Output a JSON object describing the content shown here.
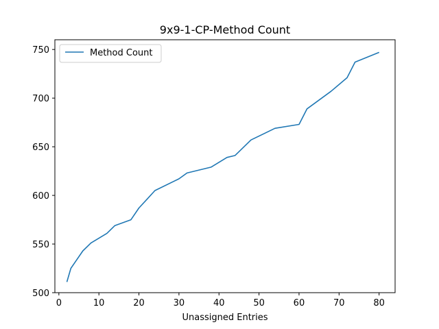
{
  "chart_data": {
    "type": "line",
    "title": "9x9-1-CP-Method Count",
    "xlabel": "Unassigned Entries",
    "ylabel": "",
    "xlim": [
      -1,
      84
    ],
    "ylim": [
      500,
      760
    ],
    "xticks": [
      0,
      10,
      20,
      30,
      40,
      50,
      60,
      70,
      80
    ],
    "yticks": [
      500,
      550,
      600,
      650,
      700,
      750
    ],
    "grid": false,
    "legend_position": "top-left",
    "series": [
      {
        "name": "Method Count",
        "color": "#1f77b4",
        "x": [
          2,
          3,
          6,
          8,
          12,
          14,
          18,
          20,
          22,
          24,
          30,
          32,
          38,
          42,
          44,
          48,
          54,
          60,
          62,
          68,
          72,
          74,
          80
        ],
        "y": [
          511,
          525,
          543,
          551,
          561,
          569,
          575,
          587,
          596,
          605,
          617,
          623,
          629,
          639,
          641,
          657,
          669,
          673,
          689,
          707,
          721,
          737,
          747
        ]
      }
    ]
  }
}
